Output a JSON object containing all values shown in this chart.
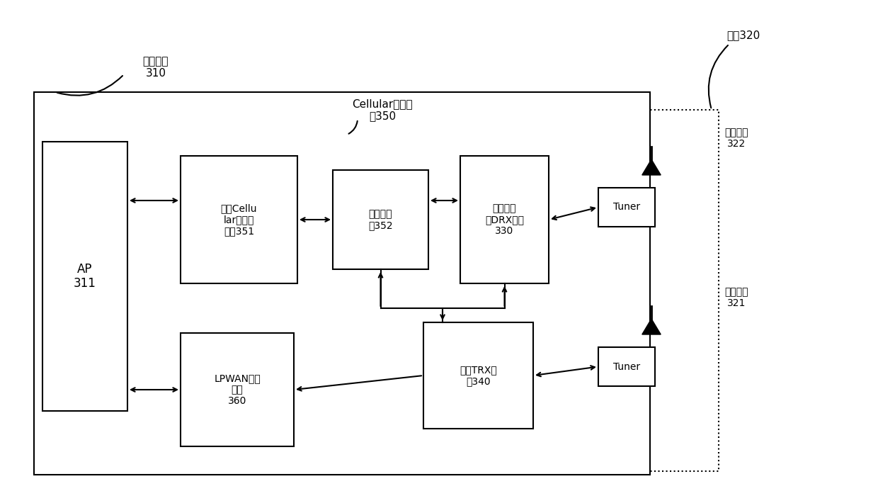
{
  "bg_color": "#ffffff",
  "border_color": "#000000",
  "title_antenna": "天线320",
  "label_chip": "芯片模块\n310",
  "label_cellular_module": "Cellular通信模\n块350",
  "label_ap": "AP\n311",
  "label_modem": "蜂窜Cellu\nlar调制解\n调器351",
  "label_trx_cell": "蜂窜收发\n器352",
  "label_drx": "非连续接\n收DRX模块\n330",
  "label_lpwan": "LPWAN通信\n模块\n360",
  "label_trx": "收发TRX模\n块340",
  "label_tuner1": "Tuner",
  "label_tuner2": "Tuner",
  "label_div_ant": "分集天线\n322",
  "label_main_ant": "主集天线\n321"
}
